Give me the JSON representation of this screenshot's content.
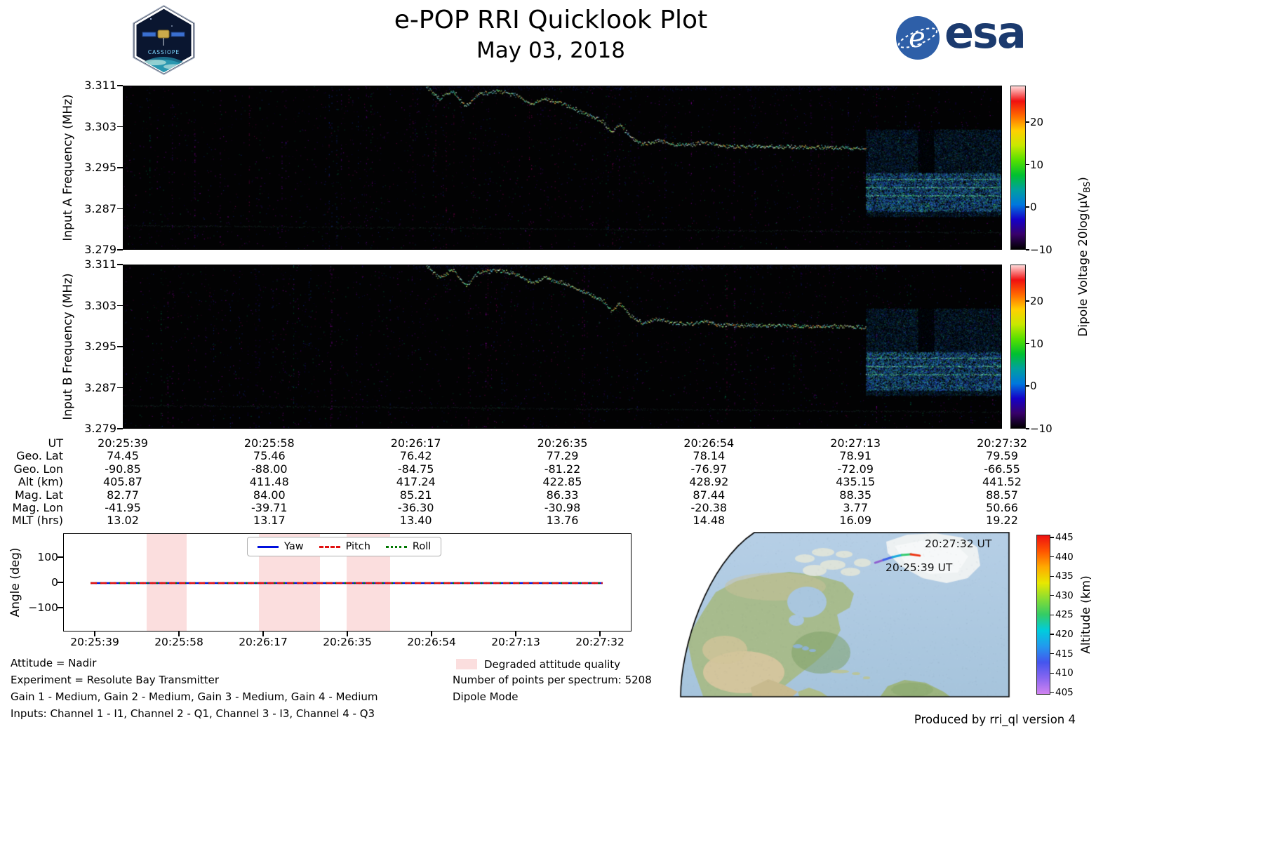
{
  "header": {
    "title": "e-POP RRI Quicklook Plot",
    "date": "May 03, 2018",
    "esa_logo": "esa",
    "cassiope_logo": "CASSIOPE"
  },
  "colors": {
    "spectro_colormap": [
      "#000000",
      "#38006a",
      "#1500c8",
      "#0077dd",
      "#00a0a0",
      "#00c030",
      "#55e000",
      "#c8e800",
      "#ffd000",
      "#ff6a00",
      "#f01010",
      "#ffd8d8"
    ],
    "alt_colormap": [
      "#d183f0",
      "#8866f0",
      "#4455ee",
      "#2299ee",
      "#00ccdd",
      "#33cc66",
      "#88dd33",
      "#e8e800",
      "#ffaa00",
      "#ff5500",
      "#ee1111"
    ],
    "degraded_band": "#fbdede",
    "yaw": "#0010dd",
    "pitch": "#e01010",
    "roll": "#007700"
  },
  "spectrograms": {
    "panel_a_ylabel": "Input A Frequency (MHz)",
    "panel_b_ylabel": "Input B Frequency (MHz)",
    "yticks": [
      "3.311",
      "3.303",
      "3.295",
      "3.287",
      "3.279"
    ],
    "colorbar_ticks": [
      "20",
      "10",
      "0",
      "−10"
    ],
    "colorbar_label_pre": "Dipole Voltage 20log(µV",
    "colorbar_label_sub": "BS",
    "colorbar_label_post": ")"
  },
  "ephemeris": {
    "rows": [
      {
        "label": "UT",
        "values": [
          "20:25:39",
          "20:25:58",
          "20:26:17",
          "20:26:35",
          "20:26:54",
          "20:27:13",
          "20:27:32"
        ]
      },
      {
        "label": "Geo. Lat",
        "values": [
          "74.45",
          "75.46",
          "76.42",
          "77.29",
          "78.14",
          "78.91",
          "79.59"
        ]
      },
      {
        "label": "Geo. Lon",
        "values": [
          "-90.85",
          "-88.00",
          "-84.75",
          "-81.22",
          "-76.97",
          "-72.09",
          "-66.55"
        ]
      },
      {
        "label": "Alt (km)",
        "values": [
          "405.87",
          "411.48",
          "417.24",
          "422.85",
          "428.92",
          "435.15",
          "441.52"
        ]
      },
      {
        "label": "Mag. Lat",
        "values": [
          "82.77",
          "84.00",
          "85.21",
          "86.33",
          "87.44",
          "88.35",
          "88.57"
        ]
      },
      {
        "label": "Mag. Lon",
        "values": [
          "-41.95",
          "-39.71",
          "-36.30",
          "-30.98",
          "-20.38",
          "3.77",
          "50.66"
        ]
      },
      {
        "label": "MLT (hrs)",
        "values": [
          "13.02",
          "13.17",
          "13.40",
          "13.76",
          "14.48",
          "16.09",
          "19.22"
        ]
      }
    ]
  },
  "attitude": {
    "ylabel": "Angle (deg)",
    "yticks": [
      "100",
      "0",
      "−100"
    ],
    "xticks": [
      "20:25:39",
      "20:25:58",
      "20:26:17",
      "20:26:35",
      "20:26:54",
      "20:27:13",
      "20:27:32"
    ],
    "legend": [
      {
        "label": "Yaw",
        "style": "solid"
      },
      {
        "label": "Pitch",
        "style": "dashed"
      },
      {
        "label": "Roll",
        "style": "dotted"
      }
    ]
  },
  "notes": {
    "left": [
      "Attitude = Nadir",
      "Experiment = Resolute Bay Transmitter",
      "Gain 1 - Medium, Gain 2 - Medium, Gain 3 - Medium, Gain 4 - Medium",
      "Inputs: Channel 1 - I1, Channel 2 - Q1, Channel 3 - I3, Channel 4 - Q3"
    ],
    "degraded_legend": "Degraded attitude quality",
    "points_per_spectrum": "Number of points per spectrum: 5208",
    "mode": "Dipole Mode"
  },
  "map": {
    "label_end": "20:27:32 UT",
    "label_start": "20:25:39 UT",
    "colorbar_label": "Altitude (km)",
    "colorbar_ticks": [
      "445",
      "440",
      "435",
      "430",
      "425",
      "420",
      "415",
      "410",
      "405"
    ]
  },
  "footer": "Produced by rri_ql version 4",
  "chart_data": [
    {
      "type": "heatmap",
      "panel": "A",
      "title": "Input A RRI spectrogram",
      "xlabel": "UT",
      "ylabel": "Input A Frequency (MHz)",
      "x_range": [
        "20:25:39",
        "20:27:32"
      ],
      "ylim": [
        3.279,
        3.311
      ],
      "yticks": [
        3.279,
        3.287,
        3.295,
        3.303,
        3.311
      ],
      "colorbar": {
        "label": "Dipole Voltage 20log(µV_BS)",
        "vmin": -10,
        "vmax": 28.5,
        "ticks": [
          -10,
          0,
          10,
          20
        ]
      },
      "transmitter_trace": [
        [
          0.345,
          3.3108
        ],
        [
          0.36,
          3.3085
        ],
        [
          0.375,
          3.31
        ],
        [
          0.39,
          3.307
        ],
        [
          0.405,
          3.3095
        ],
        [
          0.425,
          3.31
        ],
        [
          0.445,
          3.3093
        ],
        [
          0.465,
          3.3075
        ],
        [
          0.48,
          3.3085
        ],
        [
          0.5,
          3.3075
        ],
        [
          0.52,
          3.306
        ],
        [
          0.545,
          3.3042
        ],
        [
          0.555,
          3.302
        ],
        [
          0.565,
          3.3035
        ],
        [
          0.578,
          3.301
        ],
        [
          0.59,
          3.2996
        ],
        [
          0.61,
          3.3005
        ],
        [
          0.625,
          3.2996
        ],
        [
          0.645,
          3.2995
        ],
        [
          0.66,
          3.3
        ],
        [
          0.68,
          3.2993
        ],
        [
          0.72,
          3.2992
        ],
        [
          0.78,
          3.2991
        ],
        [
          0.845,
          3.2989
        ]
      ],
      "baseline_trace": {
        "x": [
          0.0,
          1.0
        ],
        "freq": [
          3.2838,
          3.2824
        ]
      },
      "noise_block": {
        "x": [
          0.845,
          1.0
        ],
        "freq": [
          3.2855,
          3.3025
        ],
        "dense_band": [
          3.2865,
          3.294
        ],
        "bright_lines": [
          3.2896,
          3.2912,
          3.2928
        ]
      }
    },
    {
      "type": "heatmap",
      "panel": "B",
      "title": "Input B RRI spectrogram",
      "xlabel": "UT",
      "ylabel": "Input B Frequency (MHz)",
      "x_range": [
        "20:25:39",
        "20:27:32"
      ],
      "ylim": [
        3.279,
        3.311
      ],
      "yticks": [
        3.279,
        3.287,
        3.295,
        3.303,
        3.311
      ],
      "colorbar": {
        "label": "Dipole Voltage 20log(µV_BS)",
        "vmin": -10,
        "vmax": 28.5,
        "ticks": [
          -10,
          0,
          10,
          20
        ]
      },
      "transmitter_trace": [
        [
          0.345,
          3.3108
        ],
        [
          0.36,
          3.3085
        ],
        [
          0.375,
          3.31
        ],
        [
          0.39,
          3.307
        ],
        [
          0.405,
          3.3095
        ],
        [
          0.425,
          3.31
        ],
        [
          0.445,
          3.3093
        ],
        [
          0.465,
          3.3075
        ],
        [
          0.48,
          3.3085
        ],
        [
          0.5,
          3.3075
        ],
        [
          0.52,
          3.306
        ],
        [
          0.545,
          3.3042
        ],
        [
          0.555,
          3.302
        ],
        [
          0.565,
          3.3035
        ],
        [
          0.578,
          3.301
        ],
        [
          0.59,
          3.2996
        ],
        [
          0.61,
          3.3005
        ],
        [
          0.625,
          3.2996
        ],
        [
          0.645,
          3.2995
        ],
        [
          0.66,
          3.3
        ],
        [
          0.68,
          3.2993
        ],
        [
          0.72,
          3.2992
        ],
        [
          0.78,
          3.2991
        ],
        [
          0.845,
          3.2989
        ]
      ],
      "baseline_trace": {
        "x": [
          0.0,
          1.0
        ],
        "freq": [
          3.2836,
          3.2823
        ]
      },
      "noise_block": {
        "x": [
          0.845,
          1.0
        ],
        "freq": [
          3.2855,
          3.3025
        ],
        "dense_band": [
          3.2865,
          3.294
        ],
        "bright_lines": [
          3.2896,
          3.2912,
          3.2928
        ]
      }
    },
    {
      "type": "line",
      "title": "Spacecraft attitude angles",
      "ylabel": "Angle (deg)",
      "ylim": [
        -190,
        190
      ],
      "x": [
        "20:25:39",
        "20:25:58",
        "20:26:17",
        "20:26:35",
        "20:26:54",
        "20:27:13",
        "20:27:32"
      ],
      "series": [
        {
          "name": "Yaw",
          "values": [
            0,
            0,
            0,
            0,
            0,
            0,
            0
          ]
        },
        {
          "name": "Pitch",
          "values": [
            0,
            0,
            0,
            0,
            0,
            0,
            0
          ]
        },
        {
          "name": "Roll",
          "values": [
            0,
            0,
            0,
            0,
            0,
            0,
            0
          ]
        }
      ],
      "degraded_intervals_frac": [
        [
          0.146,
          0.216
        ],
        [
          0.343,
          0.451
        ],
        [
          0.497,
          0.574
        ]
      ],
      "data_extent_frac": [
        0.047,
        0.948
      ]
    },
    {
      "type": "line",
      "title": "Ground track on map (altitude-coloured)",
      "start_label": "20:25:39 UT",
      "end_label": "20:27:32 UT",
      "altitude_range_km": [
        405,
        445
      ],
      "altitude_ticks_km": [
        405,
        410,
        415,
        420,
        425,
        430,
        435,
        440,
        445
      ],
      "track_points_frac": [
        [
          0.594,
          0.186
        ],
        [
          0.619,
          0.169
        ],
        [
          0.646,
          0.152
        ],
        [
          0.674,
          0.139
        ],
        [
          0.701,
          0.135
        ],
        [
          0.728,
          0.143
        ]
      ]
    }
  ]
}
